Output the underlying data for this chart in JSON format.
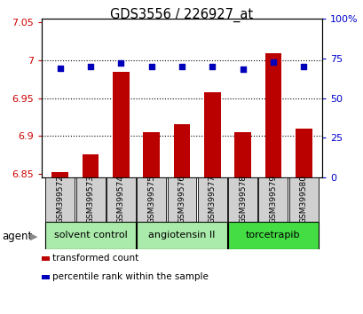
{
  "title": "GDS3556 / 226927_at",
  "samples": [
    "GSM399572",
    "GSM399573",
    "GSM399574",
    "GSM399575",
    "GSM399576",
    "GSM399577",
    "GSM399578",
    "GSM399579",
    "GSM399580"
  ],
  "bar_values": [
    6.852,
    6.875,
    6.985,
    6.905,
    6.915,
    6.958,
    6.905,
    7.01,
    6.91
  ],
  "percentile_values": [
    69,
    70,
    72,
    70,
    70,
    70,
    68,
    73,
    70
  ],
  "bar_bottom": 6.845,
  "ylim_left": [
    6.845,
    7.055
  ],
  "ylim_right": [
    0,
    100
  ],
  "yticks_left": [
    6.85,
    6.9,
    6.95,
    7.0,
    7.05
  ],
  "ytick_labels_left": [
    "6.85",
    "6.9",
    "6.95",
    "7",
    "7.05"
  ],
  "yticks_right": [
    0,
    25,
    50,
    75,
    100
  ],
  "ytick_labels_right": [
    "0",
    "25",
    "50",
    "75",
    "100%"
  ],
  "group_def": [
    {
      "start": 0,
      "end": 2,
      "label": "solvent control",
      "color": "#aaeaaa"
    },
    {
      "start": 3,
      "end": 5,
      "label": "angiotensin II",
      "color": "#aaeaaa"
    },
    {
      "start": 6,
      "end": 8,
      "label": "torcetrapib",
      "color": "#44dd44"
    }
  ],
  "bar_color": "#bb0000",
  "dot_color": "#0000bb",
  "bar_width": 0.55,
  "agent_label": "agent",
  "legend_bar_label": "transformed count",
  "legend_dot_label": "percentile rank within the sample",
  "background_color": "#ffffff",
  "tick_color_left": "#cc0000",
  "tick_color_right": "#0000cc",
  "sample_box_color": "#d0d0d0"
}
